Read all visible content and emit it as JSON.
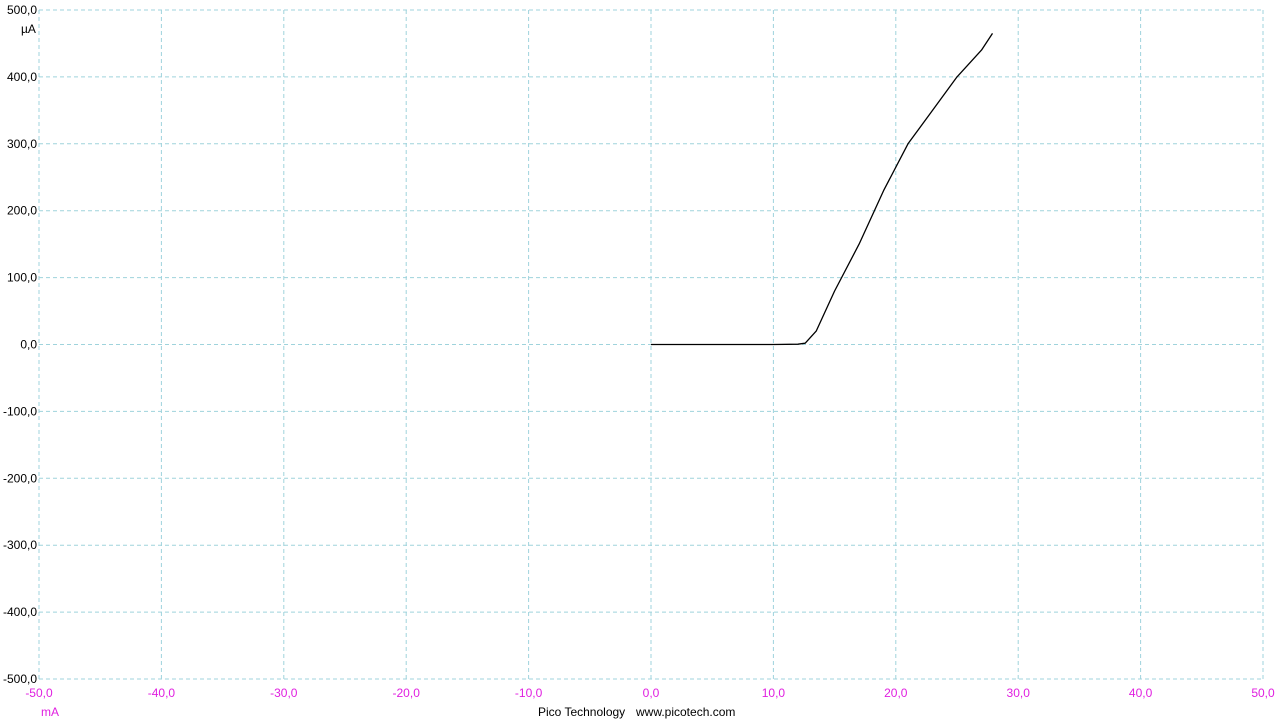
{
  "chart_data": {
    "type": "line",
    "title": "",
    "x_unit": "mA",
    "y_unit": "µA",
    "xlim": [
      -50,
      50
    ],
    "ylim": [
      -500,
      500
    ],
    "x_ticks": [
      -50,
      -40,
      -30,
      -20,
      -10,
      0,
      10,
      20,
      30,
      40,
      50
    ],
    "x_tick_labels": [
      "-50,0",
      "-40,0",
      "-30,0",
      "-20,0",
      "-10,0",
      "0,0",
      "10,0",
      "20,0",
      "30,0",
      "40,0",
      "50,0"
    ],
    "y_ticks": [
      500,
      400,
      300,
      200,
      100,
      0,
      -100,
      -200,
      -300,
      -400,
      -500
    ],
    "y_tick_labels": [
      "500,0",
      "400,0",
      "300,0",
      "200,0",
      "100,0",
      "0,0",
      "-100,0",
      "-200,0",
      "-300,0",
      "-400,0",
      "-500,0"
    ],
    "grid": true,
    "series": [
      {
        "x": [
          0.0,
          5.0,
          10.0,
          12.0,
          12.6,
          13.5,
          15.0,
          17.0,
          19.0,
          21.0,
          23.0,
          25.0,
          27.0,
          27.9
        ],
        "y": [
          0.0,
          0.0,
          0.0,
          0.5,
          2.0,
          20,
          80,
          150,
          230,
          300,
          350,
          400,
          440,
          465
        ]
      }
    ]
  },
  "colors": {
    "grid": "#9fd3dc",
    "line": "#000000",
    "x_axis_text": "#e020e0",
    "y_axis_text": "#000000",
    "footer_text": "#000000"
  },
  "footer": {
    "brand": "Pico Technology",
    "url": "www.picotech.com"
  }
}
